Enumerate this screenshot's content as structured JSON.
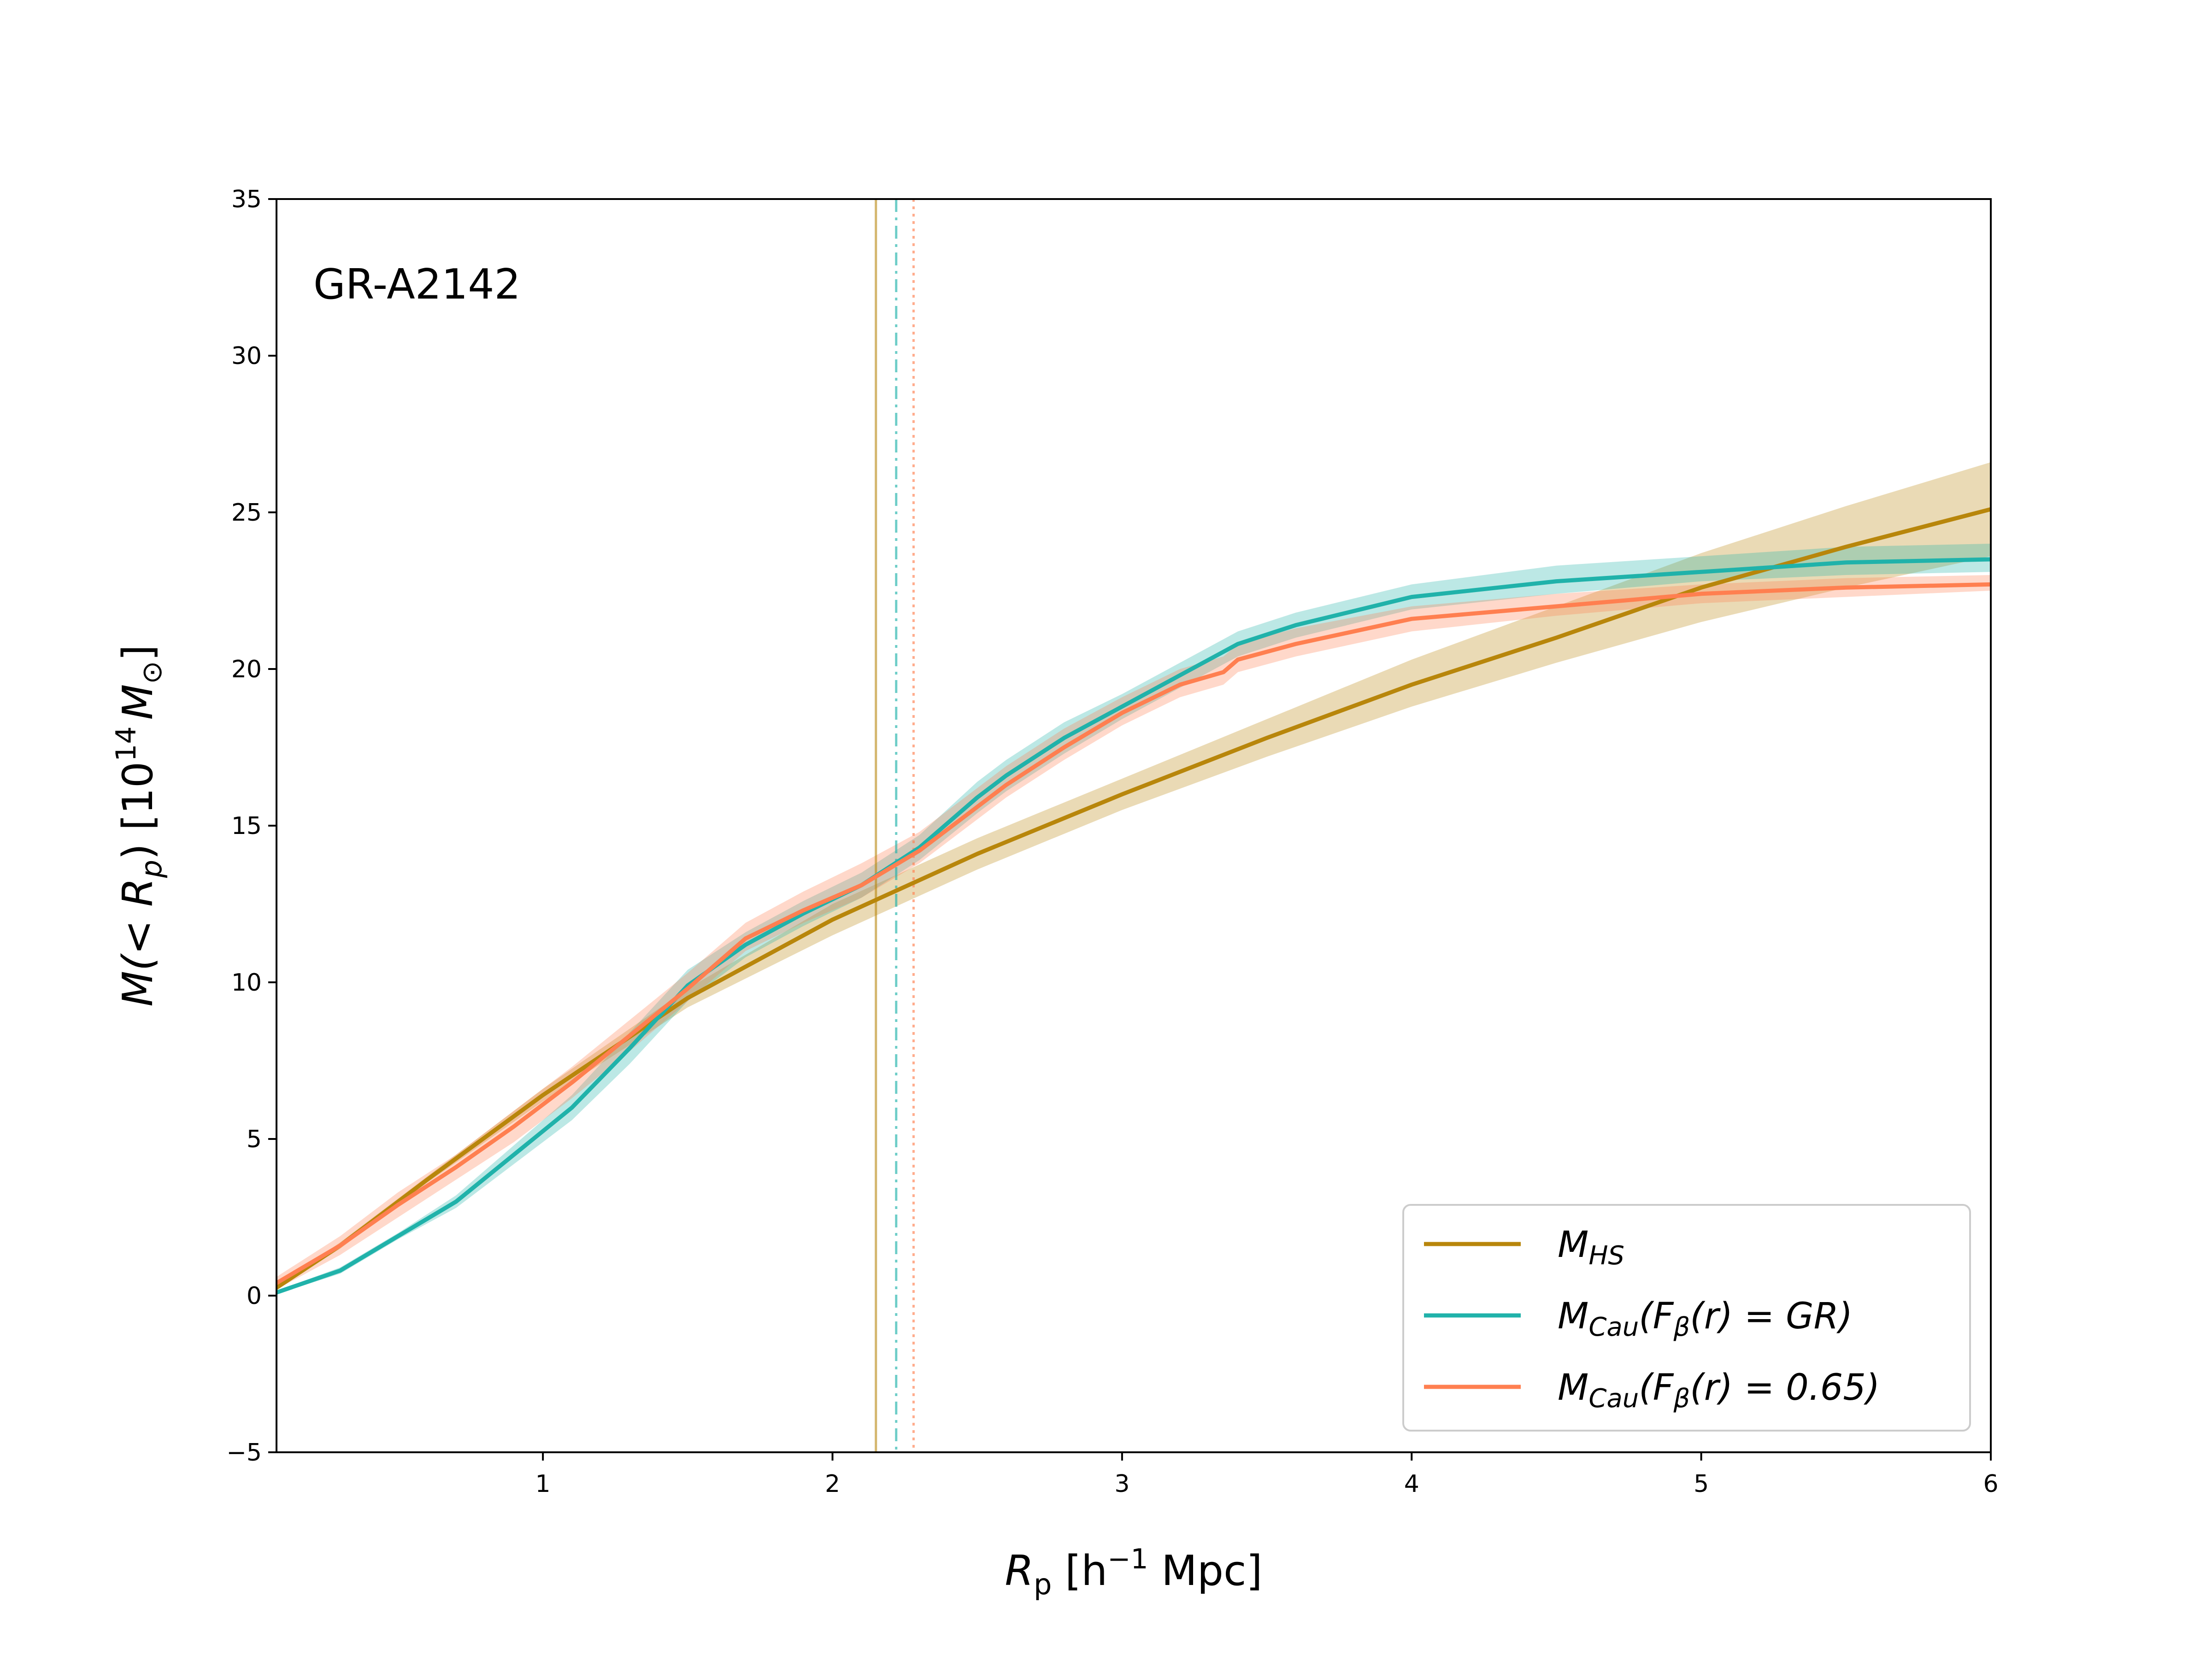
{
  "chart_data": {
    "type": "line",
    "annotation": "GR-A2142",
    "xlabel": "R_p [h^-1 Mpc]",
    "ylabel": "M(<R_p) [10^14 M_sun]",
    "xlim": [
      0.08,
      6
    ],
    "ylim": [
      -5,
      35
    ],
    "x_ticks": [
      1,
      2,
      3,
      4,
      5,
      6
    ],
    "x_tick_labels": [
      "1",
      "2",
      "3",
      "4",
      "5",
      "6"
    ],
    "y_ticks": [
      -5,
      0,
      5,
      10,
      15,
      20,
      25,
      30,
      35
    ],
    "y_tick_labels": [
      "−5",
      "0",
      "5",
      "10",
      "15",
      "20",
      "25",
      "30",
      "35"
    ],
    "legend_position": "bottom-right",
    "series": [
      {
        "id": "hs",
        "name": "M_HS",
        "color": "#b8860b",
        "x": [
          0.08,
          0.3,
          0.6,
          1.0,
          1.5,
          2.0,
          2.5,
          3.0,
          3.5,
          4.0,
          4.5,
          5.0,
          5.5,
          6.0
        ],
        "y": [
          0.25,
          1.6,
          3.7,
          6.4,
          9.5,
          12.0,
          14.1,
          16.0,
          17.8,
          19.5,
          21.0,
          22.6,
          23.9,
          25.1
        ],
        "lower": [
          0.2,
          1.5,
          3.6,
          6.2,
          9.2,
          11.5,
          13.6,
          15.5,
          17.2,
          18.8,
          20.2,
          21.5,
          22.6,
          23.6
        ],
        "upper": [
          0.3,
          1.7,
          3.8,
          6.6,
          9.8,
          12.5,
          14.6,
          16.5,
          18.4,
          20.3,
          22.0,
          23.7,
          25.2,
          26.6
        ]
      },
      {
        "id": "gr",
        "name": "M_Cau(F_beta(r)=GR)",
        "color": "#20b2aa",
        "x": [
          0.08,
          0.3,
          0.5,
          0.7,
          0.9,
          1.1,
          1.3,
          1.5,
          1.7,
          1.9,
          2.1,
          2.3,
          2.5,
          2.6,
          2.8,
          3.0,
          3.2,
          3.4,
          3.6,
          4.0,
          4.5,
          5.0,
          5.5,
          6.0
        ],
        "y": [
          0.1,
          0.8,
          1.9,
          3.0,
          4.5,
          6.0,
          7.9,
          9.9,
          11.2,
          12.2,
          13.1,
          14.3,
          15.9,
          16.6,
          17.8,
          18.8,
          19.8,
          20.8,
          21.4,
          22.3,
          22.8,
          23.1,
          23.4,
          23.5
        ],
        "lower": [
          0.05,
          0.7,
          1.8,
          2.8,
          4.2,
          5.6,
          7.4,
          9.4,
          10.8,
          11.8,
          12.7,
          13.9,
          15.4,
          16.1,
          17.3,
          18.4,
          19.4,
          20.4,
          21.0,
          21.9,
          22.4,
          22.8,
          23.0,
          23.1
        ],
        "upper": [
          0.15,
          0.9,
          2.0,
          3.2,
          4.8,
          6.4,
          8.4,
          10.4,
          11.6,
          12.6,
          13.5,
          14.7,
          16.4,
          17.1,
          18.3,
          19.2,
          20.2,
          21.2,
          21.8,
          22.7,
          23.3,
          23.6,
          23.9,
          24.0
        ]
      },
      {
        "id": "b065",
        "name": "M_Cau(F_beta(r)=0.65)",
        "color": "#ff7f50",
        "x": [
          0.08,
          0.3,
          0.5,
          0.7,
          0.9,
          1.1,
          1.3,
          1.5,
          1.7,
          1.9,
          2.1,
          2.3,
          2.5,
          2.6,
          2.8,
          3.0,
          3.2,
          3.35,
          3.4,
          3.6,
          4.0,
          4.5,
          5.0,
          5.5,
          6.0
        ],
        "y": [
          0.4,
          1.6,
          2.9,
          4.1,
          5.4,
          6.8,
          8.3,
          9.8,
          11.4,
          12.3,
          13.1,
          14.2,
          15.6,
          16.3,
          17.5,
          18.6,
          19.5,
          19.9,
          20.3,
          20.8,
          21.6,
          22.0,
          22.4,
          22.6,
          22.7
        ],
        "lower": [
          0.2,
          1.3,
          2.5,
          3.7,
          4.9,
          6.3,
          7.8,
          9.4,
          11.0,
          11.9,
          12.7,
          13.8,
          15.2,
          15.9,
          17.1,
          18.2,
          19.1,
          19.5,
          19.9,
          20.4,
          21.2,
          21.7,
          22.1,
          22.3,
          22.5
        ],
        "upper": [
          0.6,
          1.9,
          3.3,
          4.5,
          5.9,
          7.3,
          8.8,
          10.3,
          11.9,
          12.9,
          13.8,
          14.8,
          16.2,
          16.9,
          18.1,
          19.1,
          20.0,
          20.4,
          20.8,
          21.3,
          22.0,
          22.4,
          22.7,
          22.9,
          23.0
        ]
      }
    ],
    "vertical_lines": [
      {
        "id": "vl-hs",
        "x": 2.15,
        "color": "#b8860b",
        "style": "solid"
      },
      {
        "id": "vl-gr",
        "x": 2.22,
        "color": "#20b2aa",
        "style": "dashdot"
      },
      {
        "id": "vl-b065",
        "x": 2.28,
        "color": "#ff7f50",
        "style": "dotted"
      }
    ]
  },
  "legend": {
    "hs": {
      "main": "M",
      "sub": "HS",
      "rest": ""
    },
    "gr": {
      "main": "M",
      "sub": "Cau",
      "pre": "(F",
      "sub2": "β",
      "post": "(r) = GR)"
    },
    "b065": {
      "main": "M",
      "sub": "Cau",
      "pre": "(F",
      "sub2": "β",
      "post": "(r) = 0.65)"
    }
  },
  "labels": {
    "x_main": "R",
    "x_sub": "p",
    "x_unit_open": " [h",
    "x_sup": "−1",
    "x_unit_close": " Mpc]",
    "y_main": "M(< R",
    "y_sub": "p",
    "y_mid": ") [10",
    "y_sup": "14",
    "y_unit": "M",
    "y_sub2": "⊙",
    "y_close": "]"
  }
}
